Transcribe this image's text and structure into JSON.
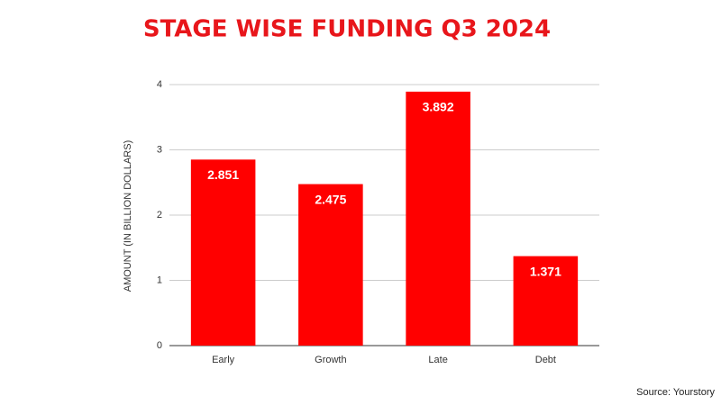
{
  "chart_data": {
    "type": "bar",
    "title": "STAGE WISE FUNDING Q3 2024",
    "y_label": "AMOUNT (IN BILLION DOLLARS)",
    "source": "Source: Yourstory",
    "categories": [
      "Early",
      "Growth",
      "Late",
      "Debt"
    ],
    "values": [
      2.851,
      2.475,
      3.892,
      1.371
    ],
    "color": "#ff0000",
    "ylim": [
      0,
      4
    ],
    "yticks": [
      0,
      1,
      2,
      3,
      4
    ],
    "grid": true
  }
}
